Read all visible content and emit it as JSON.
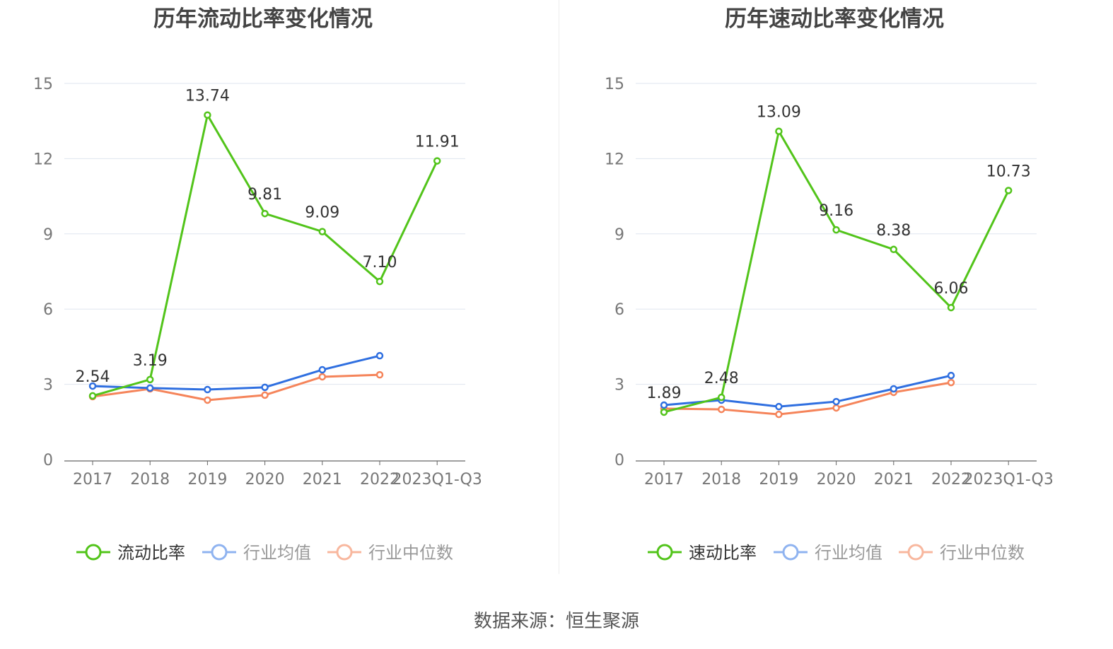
{
  "chart_data": [
    {
      "type": "line",
      "title": "历年流动比率变化情况",
      "categories": [
        "2017",
        "2018",
        "2019",
        "2020",
        "2021",
        "2022",
        "2023Q1-Q3"
      ],
      "ylim": [
        0,
        15
      ],
      "yticks": [
        "0",
        "3",
        "6",
        "9",
        "12",
        "15"
      ],
      "grid": true,
      "legend_position": "bottom",
      "series": [
        {
          "name": "流动比率",
          "color": "#52c41a",
          "values": [
            2.54,
            3.19,
            13.74,
            9.81,
            9.09,
            7.1,
            11.91
          ],
          "labels": [
            "2.54",
            "3.19",
            "13.74",
            "9.81",
            "9.09",
            "7.10",
            "11.91"
          ]
        },
        {
          "name": "行业均值",
          "color": "#2f6fe0",
          "values": [
            2.93,
            2.85,
            2.79,
            2.88,
            3.58,
            4.14,
            null
          ]
        },
        {
          "name": "行业中位数",
          "color": "#f5845a",
          "values": [
            2.51,
            2.82,
            2.37,
            2.57,
            3.3,
            3.38,
            null
          ]
        }
      ]
    },
    {
      "type": "line",
      "title": "历年速动比率变化情况",
      "categories": [
        "2017",
        "2018",
        "2019",
        "2020",
        "2021",
        "2022",
        "2023Q1-Q3"
      ],
      "ylim": [
        0,
        15
      ],
      "yticks": [
        "0",
        "3",
        "6",
        "9",
        "12",
        "15"
      ],
      "grid": true,
      "legend_position": "bottom",
      "series": [
        {
          "name": "速动比率",
          "color": "#52c41a",
          "values": [
            1.89,
            2.48,
            13.09,
            9.16,
            8.38,
            6.06,
            10.73
          ],
          "labels": [
            "1.89",
            "2.48",
            "13.09",
            "9.16",
            "8.38",
            "6.06",
            "10.73"
          ]
        },
        {
          "name": "行业均值",
          "color": "#2f6fe0",
          "values": [
            2.17,
            2.37,
            2.11,
            2.31,
            2.82,
            3.35,
            null
          ]
        },
        {
          "name": "行业中位数",
          "color": "#f5845a",
          "values": [
            2.03,
            2.0,
            1.8,
            2.06,
            2.68,
            3.07,
            null
          ]
        }
      ]
    }
  ],
  "source": "数据来源：恒生聚源"
}
